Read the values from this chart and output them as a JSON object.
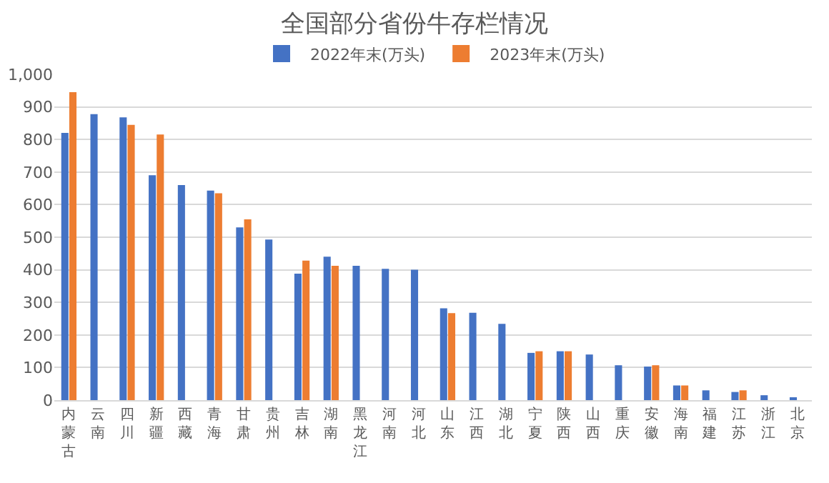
{
  "chart_data": {
    "type": "bar",
    "title": "全国部分省份牛存栏情况",
    "categories": [
      "内蒙古",
      "云南",
      "四川",
      "新疆",
      "西藏",
      "青海",
      "甘肃",
      "贵州",
      "吉林",
      "湖南",
      "黑龙江",
      "河南",
      "河北",
      "山东",
      "江西",
      "湖北",
      "宁夏",
      "陕西",
      "山西",
      "重庆",
      "安徽",
      "海南",
      "福建",
      "江苏",
      "浙江",
      "北京"
    ],
    "series": [
      {
        "name": "2022年末(万头)",
        "color": "#4472c4",
        "values": [
          820,
          878,
          868,
          690,
          660,
          643,
          530,
          493,
          388,
          440,
          412,
          403,
          400,
          282,
          268,
          234,
          145,
          150,
          140,
          107,
          103,
          45,
          30,
          25,
          15,
          5
        ]
      },
      {
        "name": "2023年末(万头)",
        "color": "#ed7d31",
        "values": [
          945,
          null,
          845,
          815,
          null,
          635,
          555,
          null,
          428,
          412,
          null,
          null,
          null,
          267,
          null,
          null,
          150,
          150,
          null,
          null,
          107,
          45,
          null,
          30,
          null,
          null
        ]
      }
    ],
    "ylim": [
      0,
      1000
    ],
    "yticks": [
      0,
      100,
      200,
      300,
      400,
      500,
      600,
      700,
      800,
      900,
      {
        "value": 1000,
        "label": "1,000"
      }
    ],
    "grid": "y",
    "legend": "top"
  }
}
